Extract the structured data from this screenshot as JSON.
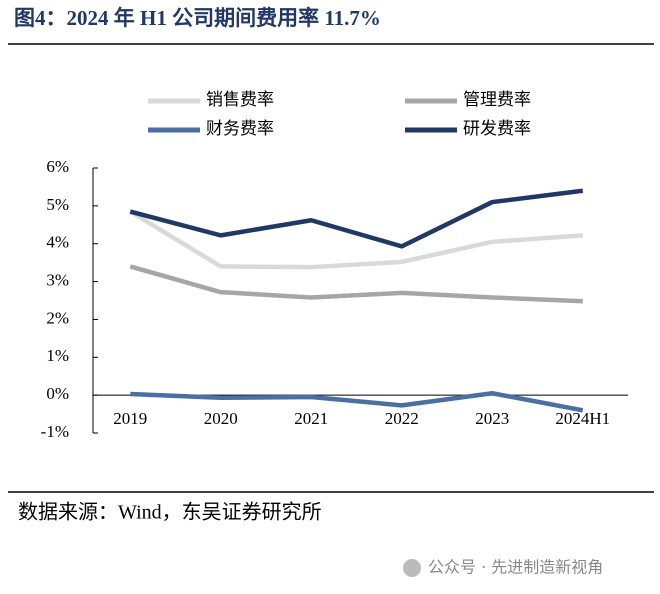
{
  "chart_data": {
    "type": "line",
    "title": "图4：2024 年 H1 公司期间费用率 11.7%",
    "categories": [
      "2019",
      "2020",
      "2021",
      "2022",
      "2023",
      "2024H1"
    ],
    "series": [
      {
        "name": "销售费率",
        "color": "#d9d9d9",
        "values": [
          4.85,
          3.4,
          3.38,
          3.52,
          4.05,
          4.22
        ]
      },
      {
        "name": "管理费率",
        "color": "#a6a6a6",
        "values": [
          3.4,
          2.72,
          2.58,
          2.7,
          2.58,
          2.48
        ]
      },
      {
        "name": "财务费率",
        "color": "#4a6fa5",
        "values": [
          0.03,
          -0.07,
          -0.05,
          -0.27,
          0.05,
          -0.4
        ]
      },
      {
        "name": "研发费率",
        "color": "#1f3864",
        "values": [
          4.85,
          4.22,
          4.62,
          3.93,
          5.1,
          5.4
        ]
      }
    ],
    "ylim": [
      -1,
      6
    ],
    "yticks": [
      {
        "value": -1,
        "label": "-1%"
      },
      {
        "value": 0,
        "label": "0%"
      },
      {
        "value": 1,
        "label": "1%"
      },
      {
        "value": 2,
        "label": "2%"
      },
      {
        "value": 3,
        "label": "3%"
      },
      {
        "value": 4,
        "label": "4%"
      },
      {
        "value": 5,
        "label": "5%"
      },
      {
        "value": 6,
        "label": "6%"
      }
    ],
    "source": "数据来源：Wind，东吴证券研究所",
    "watermark": "公众号 · 先进制造新视角"
  }
}
